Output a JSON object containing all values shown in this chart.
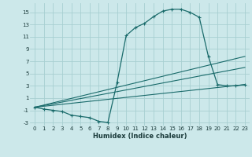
{
  "bg_color": "#cce8ea",
  "grid_color": "#a8cfd1",
  "line_color": "#1a6b6b",
  "xlabel": "Humidex (Indice chaleur)",
  "xlim": [
    -0.5,
    23.5
  ],
  "ylim": [
    -3.5,
    16.5
  ],
  "xticks": [
    0,
    1,
    2,
    3,
    4,
    5,
    6,
    7,
    8,
    9,
    10,
    11,
    12,
    13,
    14,
    15,
    16,
    17,
    18,
    19,
    20,
    21,
    22,
    23
  ],
  "yticks": [
    -3,
    -1,
    1,
    3,
    5,
    7,
    9,
    11,
    13,
    15
  ],
  "curve_x": [
    0,
    1,
    2,
    3,
    4,
    5,
    6,
    7,
    8,
    9,
    10,
    11,
    12,
    13,
    14,
    15,
    16,
    17,
    18,
    19,
    20,
    21,
    22,
    23
  ],
  "curve_y": [
    -0.5,
    -0.8,
    -1.0,
    -1.2,
    -1.8,
    -2.0,
    -2.2,
    -2.8,
    -3.0,
    3.5,
    11.2,
    12.5,
    13.2,
    14.3,
    15.2,
    15.5,
    15.5,
    15.0,
    14.2,
    7.8,
    3.2,
    3.0,
    3.0,
    3.2
  ],
  "line1_x": [
    0,
    23
  ],
  "line1_y": [
    -0.5,
    7.8
  ],
  "line2_x": [
    0,
    23
  ],
  "line2_y": [
    -0.5,
    6.0
  ],
  "line3_x": [
    0,
    23
  ],
  "line3_y": [
    -0.5,
    3.2
  ],
  "xlabel_fontsize": 6,
  "tick_fontsize": 5
}
